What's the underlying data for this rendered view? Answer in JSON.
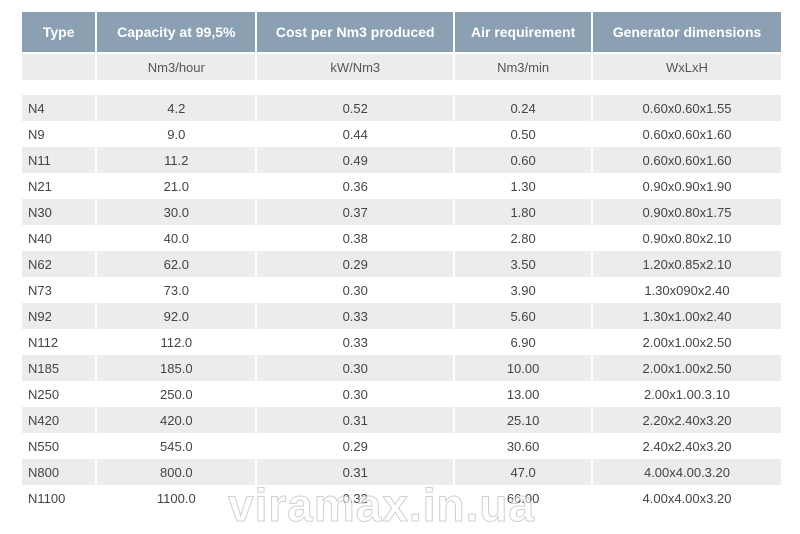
{
  "table": {
    "headers": [
      "Type",
      "Capacity at 99,5%",
      "Cost per Nm3 produced",
      "Air requirement",
      "Generator dimensions"
    ],
    "units": [
      "",
      "Nm3/hour",
      "kW/Nm3",
      "Nm3/min",
      "WxLxH"
    ],
    "rows": [
      [
        "N4",
        "4.2",
        "0.52",
        "0.24",
        "0.60x0.60x1.55"
      ],
      [
        "N9",
        "9.0",
        "0.44",
        "0.50",
        "0.60x0.60x1.60"
      ],
      [
        "N11",
        "11.2",
        "0.49",
        "0.60",
        "0.60x0.60x1.60"
      ],
      [
        "N21",
        "21.0",
        "0.36",
        "1.30",
        "0.90x0.90x1.90"
      ],
      [
        "N30",
        "30.0",
        "0.37",
        "1.80",
        "0.90x0.80x1.75"
      ],
      [
        "N40",
        "40.0",
        "0.38",
        "2.80",
        "0.90x0.80x2.10"
      ],
      [
        "N62",
        "62.0",
        "0.29",
        "3.50",
        "1.20x0.85x2.10"
      ],
      [
        "N73",
        "73.0",
        "0.30",
        "3.90",
        "1.30x090x2.40"
      ],
      [
        "N92",
        "92.0",
        "0.33",
        "5.60",
        "1.30x1.00x2.40"
      ],
      [
        "N112",
        "112.0",
        "0.33",
        "6.90",
        "2.00x1.00x2.50"
      ],
      [
        "N185",
        "185.0",
        "0.30",
        "10.00",
        "2.00x1.00x2.50"
      ],
      [
        "N250",
        "250.0",
        "0.30",
        "13.00",
        "2.00x1.00.3.10"
      ],
      [
        "N420",
        "420.0",
        "0.31",
        "25.10",
        "2.20x2.40x3.20"
      ],
      [
        "N550",
        "545.0",
        "0.29",
        "30.60",
        "2.40x2.40x3.20"
      ],
      [
        "N800",
        "800.0",
        "0.31",
        "47.0",
        "4.00x4.00.3.20"
      ],
      [
        "N1100",
        "1100.0",
        "0.32",
        "66.00",
        "4.00x4.00x3.20"
      ]
    ]
  },
  "watermark": "viramax.in.ua",
  "colors": {
    "header_bg": "#8ba1b3",
    "stripe_bg": "#ececec",
    "text": "#444444"
  }
}
